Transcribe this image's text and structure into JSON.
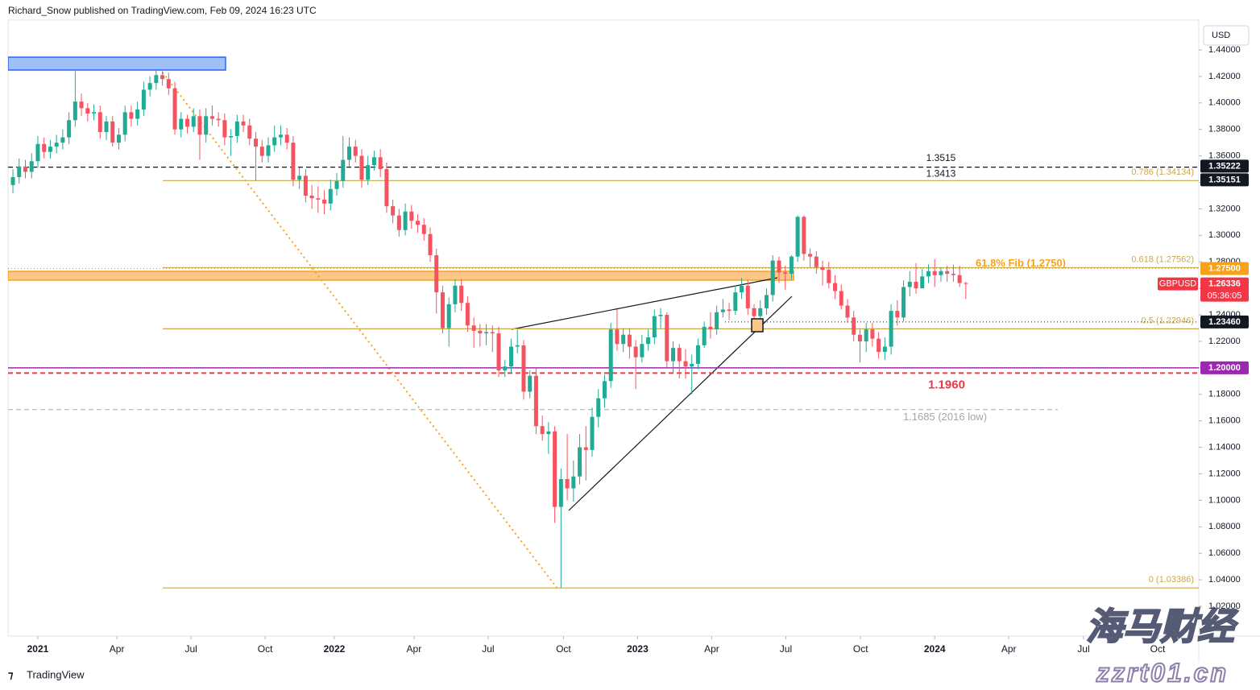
{
  "page": {
    "header": "Richard_Snow published on TradingView.com, Feb 09, 2024 16:23 UTC",
    "currency": "USD",
    "logo": "TradingView",
    "watermark": [
      "海马财经",
      "zzrt01.cn"
    ]
  },
  "chart_data": {
    "type": "candlestick",
    "symbol": "GBPUSD",
    "countdown": "05:36:05",
    "up_color": "#22ab94",
    "down_color": "#f7525f",
    "grid": false,
    "ylim": [
      0.9975,
      1.4625
    ],
    "xlim": [
      -0.78,
      190.4
    ],
    "yticks": [
      {
        "value": 1.02,
        "label": "1.02000"
      },
      {
        "value": 1.04,
        "label": "1.04000"
      },
      {
        "value": 1.06,
        "label": "1.06000"
      },
      {
        "value": 1.08,
        "label": "1.08000"
      },
      {
        "value": 1.1,
        "label": "1.10000"
      },
      {
        "value": 1.12,
        "label": "1.12000"
      },
      {
        "value": 1.14,
        "label": "1.14000"
      },
      {
        "value": 1.16,
        "label": "1.16000"
      },
      {
        "value": 1.18,
        "label": "1.18000"
      },
      {
        "value": 1.2,
        "label": "1.20000"
      },
      {
        "value": 1.22,
        "label": "1.22000"
      },
      {
        "value": 1.24,
        "label": "1.24000"
      },
      {
        "value": 1.26,
        "label": "1.26000"
      },
      {
        "value": 1.28,
        "label": "1.28000"
      },
      {
        "value": 1.3,
        "label": "1.30000"
      },
      {
        "value": 1.32,
        "label": "1.32000"
      },
      {
        "value": 1.34,
        "label": "1.34000"
      },
      {
        "value": 1.36,
        "label": "1.36000"
      },
      {
        "value": 1.38,
        "label": "1.38000"
      },
      {
        "value": 1.4,
        "label": "1.40000"
      },
      {
        "value": 1.42,
        "label": "1.42000"
      },
      {
        "value": 1.44,
        "label": "1.44000"
      }
    ],
    "xticks": [
      {
        "value": 4,
        "label": "2021"
      },
      {
        "value": 16.7,
        "label": "Apr"
      },
      {
        "value": 28.6,
        "label": "Jul"
      },
      {
        "value": 40.5,
        "label": "Oct"
      },
      {
        "value": 51.6,
        "label": "2022"
      },
      {
        "value": 64.4,
        "label": "Apr"
      },
      {
        "value": 76.3,
        "label": "Jul"
      },
      {
        "value": 88.4,
        "label": "Oct"
      },
      {
        "value": 100.3,
        "label": "2023"
      },
      {
        "value": 112.2,
        "label": "Apr"
      },
      {
        "value": 124.1,
        "label": "Jul"
      },
      {
        "value": 136.1,
        "label": "Oct"
      },
      {
        "value": 148,
        "label": "2024"
      },
      {
        "value": 159.9,
        "label": "Apr"
      },
      {
        "value": 171.9,
        "label": "Jul"
      },
      {
        "value": 183.8,
        "label": "Oct"
      }
    ],
    "open": [
      1.338,
      1.344,
      1.352,
      1.348,
      1.356,
      1.369,
      1.363,
      1.367,
      1.37,
      1.374,
      1.387,
      1.401,
      1.396,
      1.392,
      1.393,
      1.378,
      1.386,
      1.37,
      1.376,
      1.393,
      1.388,
      1.395,
      1.41,
      1.415,
      1.421,
      1.418,
      1.411,
      1.38,
      1.388,
      1.382,
      1.39,
      1.376,
      1.39,
      1.388,
      1.387,
      1.374,
      1.375,
      1.386,
      1.383,
      1.373,
      1.367,
      1.36,
      1.368,
      1.374,
      1.376,
      1.37,
      1.342,
      1.345,
      1.33,
      1.328,
      1.327,
      1.324,
      1.335,
      1.341,
      1.357,
      1.367,
      1.36,
      1.342,
      1.353,
      1.359,
      1.35,
      1.322,
      1.315,
      1.304,
      1.318,
      1.311,
      1.308,
      1.301,
      1.285,
      1.257,
      1.23,
      1.248,
      1.262,
      1.249,
      1.232,
      1.228,
      1.226,
      1.227,
      1.226,
      1.198,
      1.201,
      1.216,
      1.217,
      1.182,
      1.194,
      1.156,
      1.15,
      1.152,
      1.095,
      1.116,
      1.109,
      1.118,
      1.14,
      1.138,
      1.163,
      1.177,
      1.19,
      1.229,
      1.218,
      1.225,
      1.216,
      1.208,
      1.218,
      1.223,
      1.239,
      1.24,
      1.205,
      1.215,
      1.205,
      1.201,
      1.203,
      1.217,
      1.231,
      1.229,
      1.242,
      1.244,
      1.243,
      1.257,
      1.262,
      1.245,
      1.239,
      1.245,
      1.255,
      1.281,
      1.272,
      1.271,
      1.284,
      1.314,
      1.286,
      1.284,
      1.276,
      1.274,
      1.264,
      1.258,
      1.247,
      1.238,
      1.225,
      1.22,
      1.229,
      1.222,
      1.212,
      1.216,
      1.243,
      1.238,
      1.261,
      1.265,
      1.26,
      1.269,
      1.273,
      1.27,
      1.273,
      1.271,
      1.27,
      1.264
    ],
    "high": [
      1.35,
      1.358,
      1.357,
      1.362,
      1.375,
      1.374,
      1.372,
      1.376,
      1.38,
      1.393,
      1.424,
      1.407,
      1.4,
      1.399,
      1.398,
      1.39,
      1.39,
      1.381,
      1.398,
      1.398,
      1.401,
      1.416,
      1.42,
      1.425,
      1.424,
      1.423,
      1.416,
      1.393,
      1.391,
      1.396,
      1.395,
      1.396,
      1.398,
      1.393,
      1.392,
      1.38,
      1.391,
      1.391,
      1.388,
      1.378,
      1.372,
      1.374,
      1.383,
      1.383,
      1.381,
      1.375,
      1.351,
      1.35,
      1.338,
      1.337,
      1.334,
      1.342,
      1.347,
      1.375,
      1.374,
      1.372,
      1.365,
      1.36,
      1.364,
      1.365,
      1.355,
      1.327,
      1.32,
      1.324,
      1.323,
      1.316,
      1.313,
      1.306,
      1.29,
      1.262,
      1.253,
      1.267,
      1.267,
      1.254,
      1.238,
      1.233,
      1.233,
      1.232,
      1.231,
      1.206,
      1.222,
      1.229,
      1.221,
      1.198,
      1.2,
      1.164,
      1.159,
      1.156,
      1.124,
      1.15,
      1.13,
      1.15,
      1.156,
      1.17,
      1.184,
      1.195,
      1.234,
      1.244,
      1.23,
      1.23,
      1.221,
      1.225,
      1.229,
      1.244,
      1.245,
      1.242,
      1.22,
      1.218,
      1.214,
      1.21,
      1.222,
      1.235,
      1.242,
      1.247,
      1.252,
      1.249,
      1.262,
      1.268,
      1.266,
      1.248,
      1.251,
      1.26,
      1.285,
      1.284,
      1.277,
      1.285,
      1.315,
      1.315,
      1.29,
      1.288,
      1.281,
      1.28,
      1.27,
      1.263,
      1.252,
      1.243,
      1.229,
      1.234,
      1.234,
      1.227,
      1.223,
      1.248,
      1.251,
      1.266,
      1.273,
      1.279,
      1.275,
      1.278,
      1.282,
      1.276,
      1.277,
      1.278,
      1.277,
      1.265
    ],
    "low": [
      1.332,
      1.339,
      1.343,
      1.343,
      1.351,
      1.358,
      1.358,
      1.362,
      1.365,
      1.369,
      1.382,
      1.39,
      1.386,
      1.387,
      1.373,
      1.372,
      1.367,
      1.365,
      1.371,
      1.382,
      1.383,
      1.39,
      1.405,
      1.41,
      1.413,
      1.406,
      1.376,
      1.374,
      1.377,
      1.378,
      1.357,
      1.37,
      1.383,
      1.382,
      1.368,
      1.36,
      1.37,
      1.378,
      1.368,
      1.341,
      1.355,
      1.355,
      1.363,
      1.368,
      1.365,
      1.337,
      1.335,
      1.325,
      1.32,
      1.317,
      1.316,
      1.319,
      1.33,
      1.336,
      1.352,
      1.355,
      1.336,
      1.338,
      1.349,
      1.344,
      1.317,
      1.309,
      1.299,
      1.3,
      1.305,
      1.302,
      1.296,
      1.28,
      1.241,
      1.226,
      1.216,
      1.242,
      1.243,
      1.227,
      1.215,
      1.216,
      1.217,
      1.212,
      1.193,
      1.193,
      1.196,
      1.211,
      1.176,
      1.177,
      1.15,
      1.145,
      1.135,
      1.083,
      1.0339,
      1.1,
      1.099,
      1.112,
      1.115,
      1.133,
      1.155,
      1.17,
      1.185,
      1.213,
      1.212,
      1.207,
      1.184,
      1.204,
      1.213,
      1.218,
      1.23,
      1.2,
      1.196,
      1.192,
      1.192,
      1.18,
      1.199,
      1.215,
      1.222,
      1.225,
      1.238,
      1.236,
      1.24,
      1.252,
      1.24,
      1.23,
      1.235,
      1.24,
      1.25,
      1.264,
      1.259,
      1.267,
      1.28,
      1.281,
      1.276,
      1.271,
      1.262,
      1.26,
      1.252,
      1.244,
      1.234,
      1.22,
      1.204,
      1.212,
      1.216,
      1.207,
      1.206,
      1.21,
      1.232,
      1.235,
      1.254,
      1.256,
      1.261,
      1.264,
      1.261,
      1.265,
      1.265,
      1.265,
      1.261,
      1.252
    ],
    "close": [
      1.344,
      1.352,
      1.348,
      1.356,
      1.369,
      1.363,
      1.367,
      1.37,
      1.374,
      1.387,
      1.401,
      1.396,
      1.392,
      1.393,
      1.378,
      1.386,
      1.37,
      1.376,
      1.393,
      1.388,
      1.395,
      1.41,
      1.415,
      1.421,
      1.418,
      1.411,
      1.38,
      1.388,
      1.382,
      1.39,
      1.376,
      1.39,
      1.388,
      1.387,
      1.374,
      1.375,
      1.386,
      1.383,
      1.373,
      1.367,
      1.36,
      1.368,
      1.374,
      1.376,
      1.37,
      1.342,
      1.345,
      1.33,
      1.328,
      1.327,
      1.324,
      1.335,
      1.341,
      1.357,
      1.367,
      1.36,
      1.342,
      1.353,
      1.359,
      1.35,
      1.322,
      1.315,
      1.304,
      1.318,
      1.311,
      1.308,
      1.301,
      1.285,
      1.257,
      1.23,
      1.248,
      1.262,
      1.249,
      1.232,
      1.228,
      1.226,
      1.227,
      1.226,
      1.198,
      1.201,
      1.216,
      1.217,
      1.182,
      1.194,
      1.156,
      1.15,
      1.152,
      1.095,
      1.116,
      1.109,
      1.118,
      1.14,
      1.138,
      1.163,
      1.177,
      1.19,
      1.229,
      1.218,
      1.225,
      1.216,
      1.208,
      1.218,
      1.223,
      1.239,
      1.24,
      1.205,
      1.215,
      1.205,
      1.201,
      1.203,
      1.217,
      1.231,
      1.229,
      1.242,
      1.244,
      1.243,
      1.257,
      1.262,
      1.245,
      1.239,
      1.245,
      1.255,
      1.281,
      1.272,
      1.271,
      1.284,
      1.314,
      1.286,
      1.284,
      1.276,
      1.274,
      1.264,
      1.258,
      1.247,
      1.238,
      1.225,
      1.22,
      1.229,
      1.222,
      1.212,
      1.216,
      1.243,
      1.238,
      1.261,
      1.265,
      1.26,
      1.269,
      1.273,
      1.27,
      1.273,
      1.271,
      1.27,
      1.264,
      1.26336
    ],
    "fib_color": "#c9a84c",
    "fib_levels": [
      {
        "label": "0.786 (1.34134)",
        "value": 1.34134
      },
      {
        "label": "0.618 (1.27562)",
        "value": 1.27562
      },
      {
        "label": "0.5 (1.22946)",
        "value": 1.22946
      },
      {
        "label": "0 (1.03386)",
        "value": 1.03386
      }
    ],
    "lines": [
      {
        "value": 1.3515,
        "color": "#131722",
        "style": "dashed"
      },
      {
        "value": 1.275,
        "color": "#9598a1",
        "style": "dotted"
      },
      {
        "value": 1.2346,
        "color": "#131722",
        "style": "dotted"
      },
      {
        "value": 1.2,
        "color": "#9c27b0",
        "style": "solid"
      },
      {
        "value": 1.196,
        "color": "#f23645",
        "style": "dashed"
      },
      {
        "value": 1.1685,
        "color": "#b2b5be",
        "style": "dashed"
      }
    ],
    "annotations": [
      {
        "text": "1.3515",
        "value": 1.3515,
        "color": "#131722"
      },
      {
        "text": "1.3413",
        "value": 1.3413,
        "color": "#131722"
      },
      {
        "text": "61.8% Fib (1.2750)",
        "value": 1.275,
        "color": "#f7a21b"
      },
      {
        "text": "1.1960",
        "value": 1.196,
        "color": "#f23645"
      },
      {
        "text": "1.1685 (2016 low)",
        "value": 1.1685,
        "color": "#a3a6af"
      }
    ],
    "price_labels": [
      {
        "value": 1.35222,
        "color": "#131722"
      },
      {
        "value": 1.35151,
        "color": "#131722"
      },
      {
        "value": 1.275,
        "label": "1.27500",
        "color": "#f7a21b"
      },
      {
        "value": 1.26336,
        "color": "#f23645"
      },
      {
        "value": 1.2346,
        "label": "1.23460",
        "color": "#131722"
      },
      {
        "value": 1.2,
        "label": "1.20000",
        "color": "#9c27b0"
      }
    ]
  }
}
